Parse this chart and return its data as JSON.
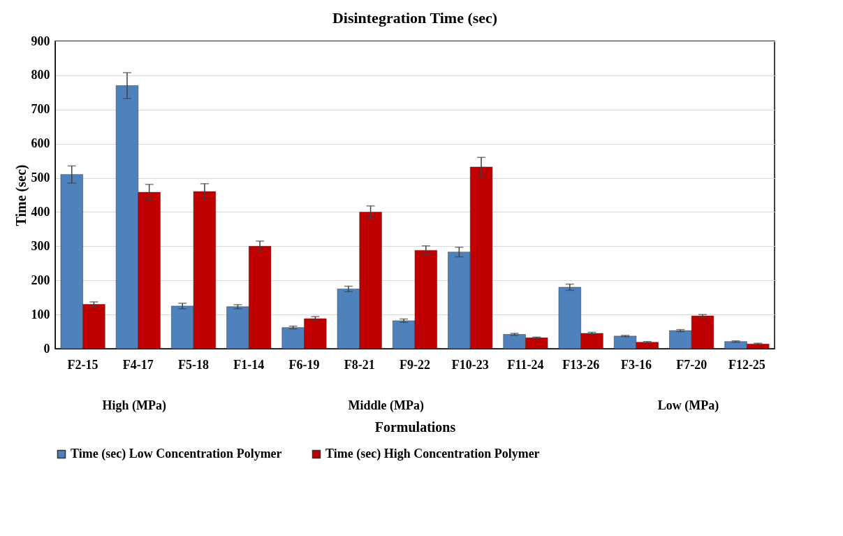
{
  "chart_data": {
    "type": "bar",
    "title": "Disintegration Time (sec)",
    "xlabel": "Formulations",
    "ylabel": "Time (sec)",
    "categories": [
      "F2-15",
      "F4-17",
      "F5-18",
      "F1-14",
      "F6-19",
      "F8-21",
      "F9-22",
      "F10-23",
      "F11-24",
      "F13-26",
      "F3-16",
      "F7-20",
      "F12-25"
    ],
    "series": [
      {
        "name": "Time (sec) Low Concentration Polymer",
        "color": "#4f81bd",
        "values": [
          510,
          770,
          125,
          123,
          62,
          175,
          82,
          283,
          42,
          180,
          37,
          53,
          21
        ],
        "errors": [
          25,
          38,
          8,
          6,
          4,
          8,
          5,
          14,
          3,
          9,
          2,
          3,
          2
        ]
      },
      {
        "name": "Time (sec) High Concentration Polymer",
        "color": "#c00000",
        "values": [
          130,
          458,
          460,
          300,
          88,
          400,
          288,
          532,
          32,
          45,
          19,
          96,
          14
        ],
        "errors": [
          7,
          23,
          23,
          15,
          6,
          18,
          13,
          28,
          2,
          3,
          2,
          4,
          2
        ]
      }
    ],
    "annotations": [
      "High (MPa)",
      "Middle (MPa)",
      "Low (MPa)"
    ],
    "ylim": [
      0,
      900
    ],
    "yticks": [
      0,
      100,
      200,
      300,
      400,
      500,
      600,
      700,
      800,
      900
    ],
    "grid": "y",
    "legend": "bottom"
  }
}
